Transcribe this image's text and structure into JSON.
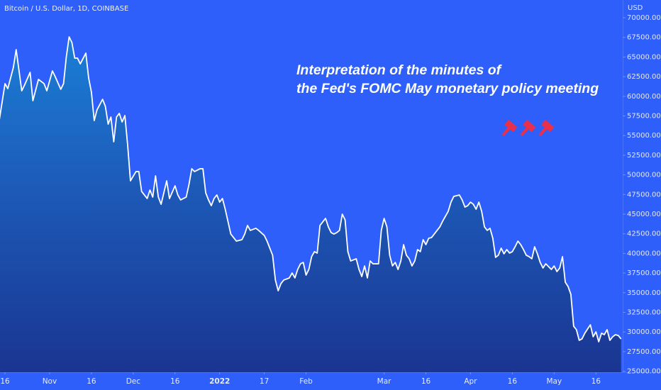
{
  "chart_data": {
    "type": "area",
    "title": "Bitcoin / U.S. Dollar, 1D, COINBASE",
    "y_axis_label": "USD",
    "annotation": [
      "Interpretation of the minutes of",
      "the Fed's FOMC May monetary policy meeting"
    ],
    "color": "#ffffff",
    "x": [
      -2,
      0,
      1,
      3,
      4,
      6,
      7,
      9,
      10,
      12,
      14,
      15,
      17,
      18,
      20,
      21,
      22,
      23,
      24,
      25,
      26,
      27,
      29,
      30,
      31,
      32,
      33,
      35,
      36,
      37,
      38,
      39,
      40,
      41,
      42,
      43,
      44,
      45,
      47,
      48,
      49,
      51,
      52,
      53,
      54,
      55,
      56,
      58,
      59,
      61,
      62,
      63,
      65,
      66,
      67,
      68,
      70,
      71,
      72,
      73,
      74,
      75,
      76,
      77,
      78,
      79,
      81,
      82,
      83,
      85,
      86,
      87,
      88,
      90,
      91,
      93,
      94,
      96,
      97,
      98,
      99,
      100,
      102,
      103,
      104,
      105,
      106,
      107,
      108,
      109,
      110,
      111,
      112,
      113,
      115,
      116,
      117,
      118,
      119,
      120,
      121,
      122,
      123,
      124,
      126,
      127,
      128,
      129,
      130,
      131,
      132,
      134,
      135,
      136,
      137,
      138,
      139,
      140,
      141,
      142,
      143,
      144,
      145,
      146,
      147,
      148,
      149,
      150,
      151,
      152,
      153,
      154,
      155,
      156,
      157,
      158,
      159,
      160,
      161,
      163,
      164,
      165,
      166,
      167,
      168,
      169,
      170,
      171,
      172,
      173,
      174,
      175,
      176,
      177,
      178,
      179,
      180,
      181,
      182,
      183,
      184,
      185,
      186,
      187,
      188,
      189,
      190,
      191,
      192,
      193,
      194,
      196,
      197,
      198,
      199,
      200,
      201,
      202,
      203,
      204,
      205,
      206,
      207,
      208,
      210,
      211,
      212,
      213,
      214,
      215,
      216,
      217,
      218,
      219,
      220,
      221
    ],
    "values": [
      57090,
      61610,
      60980,
      63680,
      65940,
      60700,
      61430,
      63050,
      59440,
      62150,
      61610,
      60700,
      63230,
      62510,
      60890,
      61610,
      65040,
      67560,
      66840,
      64860,
      64860,
      64130,
      65490,
      62330,
      60520,
      56910,
      58270,
      59620,
      58720,
      56460,
      57360,
      54210,
      57360,
      57820,
      56730,
      57550,
      53760,
      49240,
      50420,
      50420,
      47890,
      46990,
      48070,
      47170,
      49870,
      47170,
      46260,
      49240,
      46990,
      48610,
      47440,
      46810,
      47170,
      48790,
      50780,
      50420,
      50780,
      50780,
      47710,
      46810,
      46080,
      46990,
      47440,
      46530,
      46990,
      45630,
      42470,
      42020,
      41570,
      41750,
      42470,
      43560,
      42930,
      43200,
      42930,
      42290,
      41570,
      39770,
      36610,
      35250,
      36160,
      36610,
      36880,
      37510,
      36880,
      37960,
      38680,
      38860,
      37240,
      37960,
      39590,
      40220,
      40040,
      43560,
      44460,
      43380,
      42650,
      42470,
      42650,
      42930,
      45000,
      44280,
      40220,
      39040,
      39320,
      37960,
      37060,
      38410,
      36880,
      39040,
      38680,
      38680,
      42930,
      44460,
      43380,
      39770,
      38410,
      38860,
      37960,
      39040,
      41120,
      39770,
      39320,
      38410,
      39040,
      40490,
      40220,
      41750,
      41120,
      41930,
      42020,
      42470,
      42930,
      43380,
      44100,
      44730,
      45360,
      46530,
      47260,
      47440,
      46810,
      45900,
      46080,
      46530,
      46260,
      45630,
      46530,
      45360,
      43380,
      42930,
      43200,
      41930,
      39500,
      39770,
      40670,
      39950,
      40490,
      40040,
      40220,
      40850,
      41570,
      41120,
      40490,
      39770,
      39590,
      39320,
      40850,
      39950,
      38860,
      38140,
      38680,
      37960,
      38410,
      37690,
      38140,
      39590,
      36340,
      35800,
      34800,
      30740,
      30290,
      28940,
      29120,
      29840,
      30920,
      29390,
      30020,
      28760,
      29840,
      29660,
      30290,
      28940,
      29390,
      29660,
      29560,
      29120
    ],
    "xlim": [
      -1.8,
      221.6
    ],
    "xticks": [
      {
        "value": 0,
        "label": "16"
      },
      {
        "value": 16,
        "label": "Nov"
      },
      {
        "value": 31,
        "label": "16"
      },
      {
        "value": 46,
        "label": "Dec"
      },
      {
        "value": 61,
        "label": "16"
      },
      {
        "value": 77,
        "label": "2022"
      },
      {
        "value": 93,
        "label": "17"
      },
      {
        "value": 108,
        "label": "Feb"
      },
      {
        "value": 136,
        "label": "Mar"
      },
      {
        "value": 151,
        "label": "16"
      },
      {
        "value": 167,
        "label": "Apr"
      },
      {
        "value": 182,
        "label": "16"
      },
      {
        "value": 197,
        "label": "May"
      },
      {
        "value": 212,
        "label": "16"
      }
    ],
    "ylim": [
      24875,
      72256
    ],
    "yticks": [
      {
        "value": 25000,
        "label": "25000.00"
      },
      {
        "value": 27500,
        "label": "27500.00"
      },
      {
        "value": 30000,
        "label": "30000.00"
      },
      {
        "value": 32500,
        "label": "32500.00"
      },
      {
        "value": 35000,
        "label": "35000.00"
      },
      {
        "value": 37500,
        "label": "37500.00"
      },
      {
        "value": 40000,
        "label": "40000.00"
      },
      {
        "value": 42500,
        "label": "42500.00"
      },
      {
        "value": 45000,
        "label": "45000.00"
      },
      {
        "value": 47500,
        "label": "47500.00"
      },
      {
        "value": 50000,
        "label": "50000.00"
      },
      {
        "value": 52500,
        "label": "52500.00"
      },
      {
        "value": 55000,
        "label": "55000.00"
      },
      {
        "value": 57500,
        "label": "57500.00"
      },
      {
        "value": 60000,
        "label": "60000.00"
      },
      {
        "value": 62500,
        "label": "62500.00"
      },
      {
        "value": 65000,
        "label": "65000.00"
      },
      {
        "value": 67500,
        "label": "67500.00"
      },
      {
        "value": 70000,
        "label": "70000.00"
      }
    ]
  }
}
